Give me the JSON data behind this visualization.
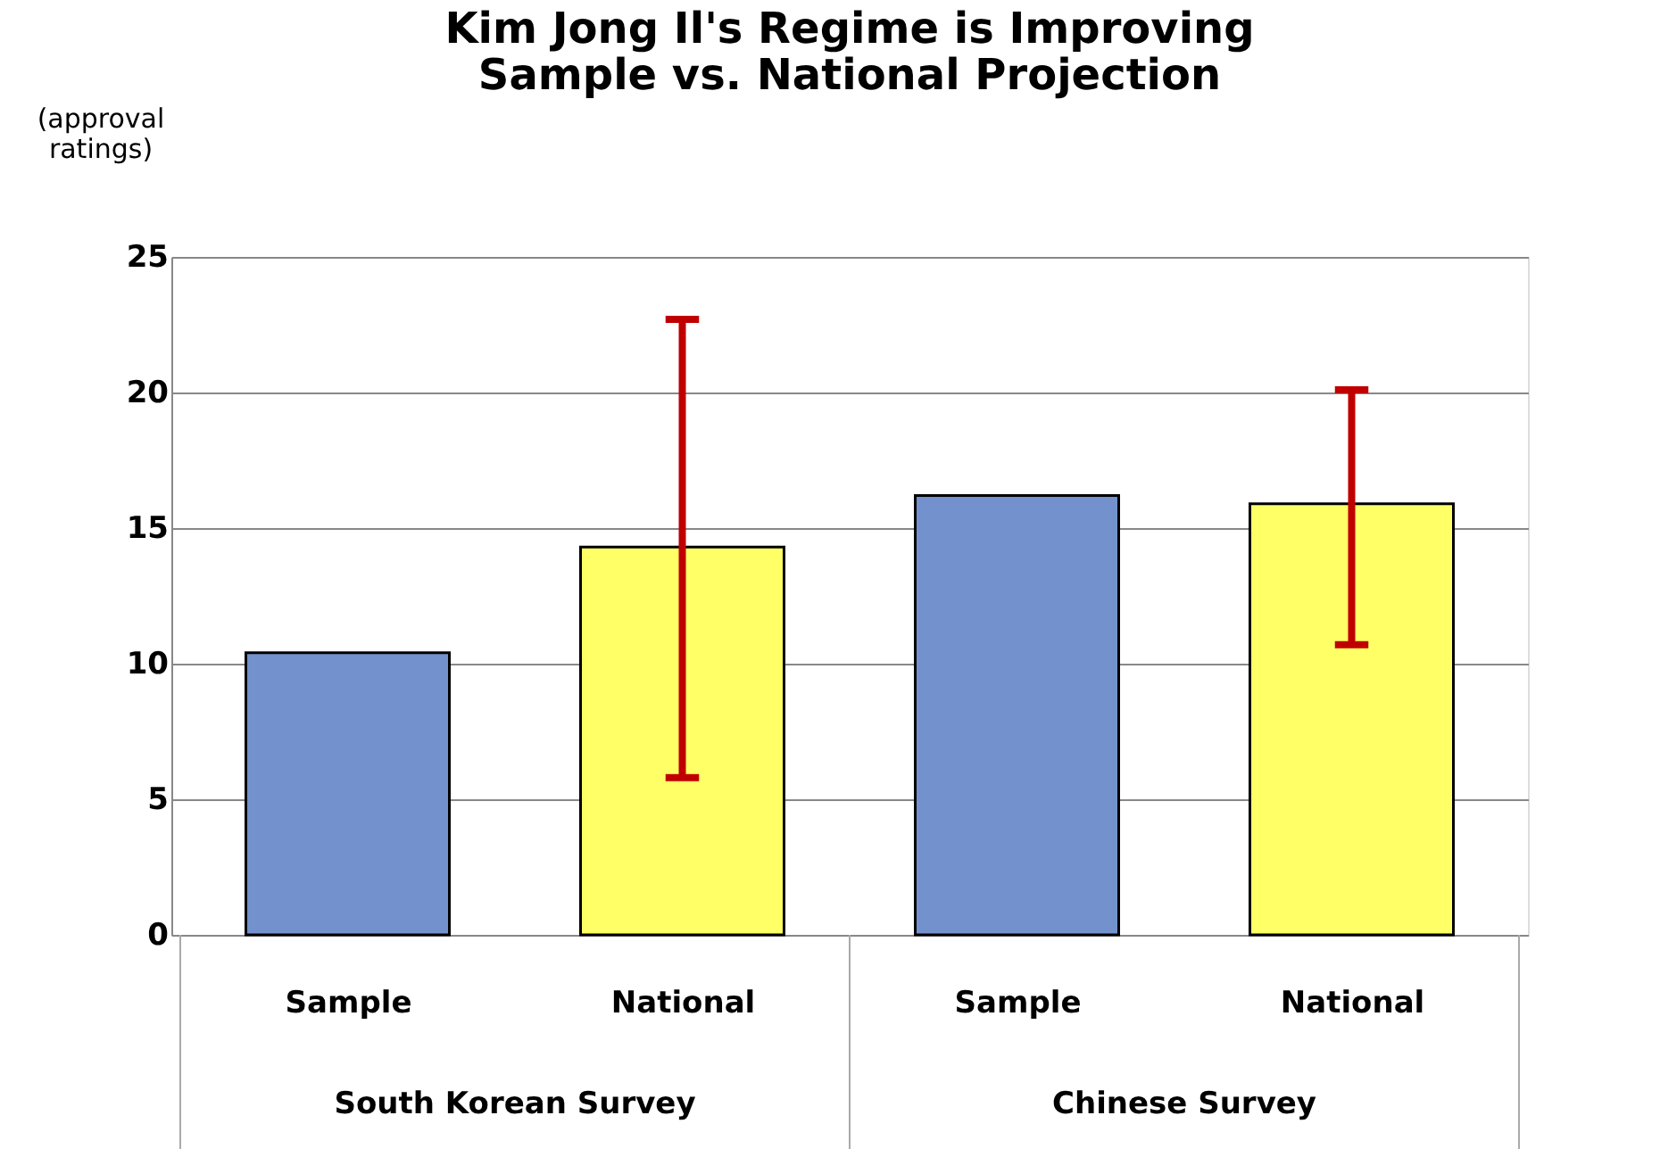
{
  "chart_data": {
    "type": "bar",
    "title": [
      "Kim Jong Il's Regime is Improving",
      "Sample vs. National Projection"
    ],
    "ylabel": "(approval ratings)",
    "categories": [
      "Sample",
      "National",
      "Sample",
      "National"
    ],
    "values": [
      10.4,
      14.3,
      16.2,
      15.9
    ],
    "colors": [
      "#7391cc",
      "#ffff66",
      "#7391cc",
      "#ffff66"
    ],
    "errors": [
      null,
      [
        5.8,
        22.7
      ],
      null,
      [
        10.7,
        20.1
      ]
    ],
    "annotations": [
      "South Korean Survey",
      "Chinese Survey"
    ],
    "ylim": [
      0,
      25
    ],
    "yticks": [
      0,
      5,
      10,
      15,
      20,
      25
    ],
    "grid": "y"
  }
}
